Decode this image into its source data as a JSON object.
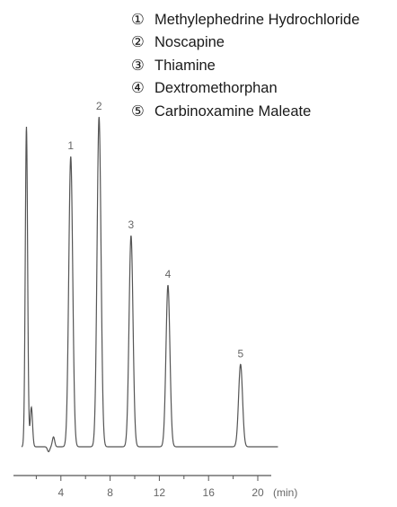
{
  "chart_data": {
    "type": "line",
    "xlabel": "(min)",
    "x_ticks": [
      4,
      8,
      12,
      16,
      20
    ],
    "xlim": [
      0,
      21.5
    ],
    "ylim": [
      0,
      1
    ],
    "series": [
      {
        "values": [
          {
            "x": 1.2,
            "y": 0.97
          },
          {
            "x": 1.6,
            "y": 0.12
          },
          {
            "x": 3.0,
            "y": -0.015
          },
          {
            "x": 3.4,
            "y": 0.03
          },
          {
            "x": 4.8,
            "y": 0.88
          },
          {
            "x": 7.1,
            "y": 1.0
          },
          {
            "x": 9.7,
            "y": 0.64
          },
          {
            "x": 12.7,
            "y": 0.49
          },
          {
            "x": 18.6,
            "y": 0.25
          }
        ]
      }
    ],
    "peak_labels": [
      {
        "label": "1",
        "x": 4.8
      },
      {
        "label": "2",
        "x": 7.1
      },
      {
        "label": "3",
        "x": 9.7
      },
      {
        "label": "4",
        "x": 12.7
      },
      {
        "label": "5",
        "x": 18.6
      }
    ]
  },
  "legend": [
    {
      "num": "①",
      "name": "Methylephedrine Hydrochloride"
    },
    {
      "num": "②",
      "name": "Noscapine"
    },
    {
      "num": "③",
      "name": "Thiamine"
    },
    {
      "num": "④",
      "name": "Dextromethorphan"
    },
    {
      "num": "⑤",
      "name": "Carbinoxamine Maleate"
    }
  ]
}
